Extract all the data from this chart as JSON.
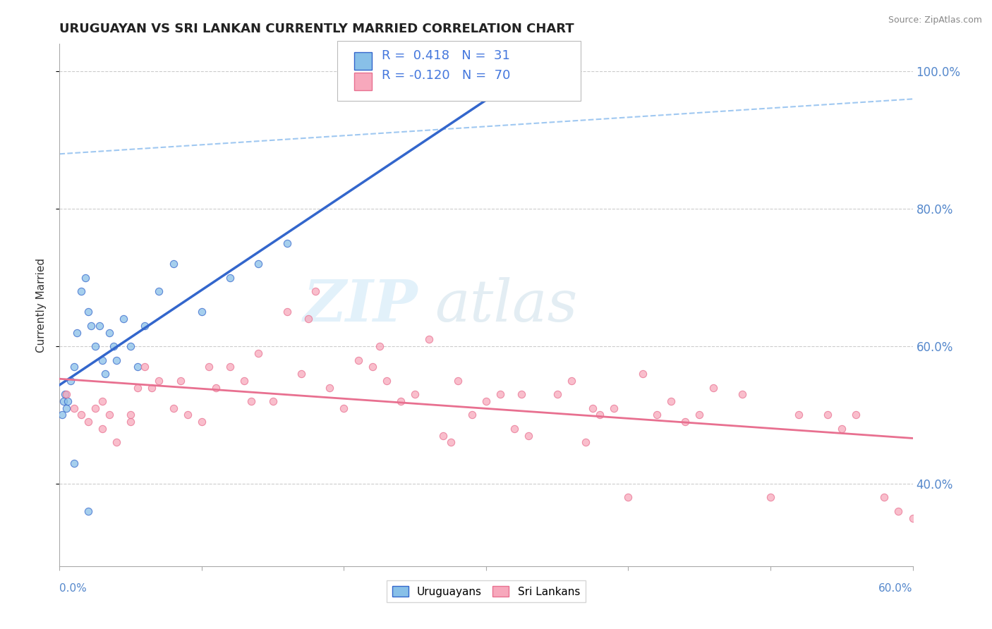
{
  "title": "URUGUAYAN VS SRI LANKAN CURRENTLY MARRIED CORRELATION CHART",
  "source_text": "Source: ZipAtlas.com",
  "ylabel": "Currently Married",
  "legend_label1": "Uruguayans",
  "legend_label2": "Sri Lankans",
  "R1": 0.418,
  "N1": 31,
  "R2": -0.12,
  "N2": 70,
  "color_uruguayan": "#88c0e8",
  "color_srilanka": "#f7a8bc",
  "color_line1": "#3366cc",
  "color_line2": "#e87090",
  "color_dashed": "#88bbee",
  "uruguayan_x": [
    0.2,
    0.3,
    0.4,
    0.5,
    0.6,
    0.8,
    1.0,
    1.2,
    1.5,
    1.8,
    2.0,
    2.2,
    2.5,
    2.8,
    3.0,
    3.2,
    3.5,
    3.8,
    4.0,
    4.5,
    5.0,
    5.5,
    6.0,
    7.0,
    8.0,
    10.0,
    12.0,
    14.0,
    16.0,
    1.0,
    2.0
  ],
  "uruguayan_y": [
    50.0,
    52.0,
    53.0,
    51.0,
    52.0,
    55.0,
    57.0,
    62.0,
    68.0,
    70.0,
    65.0,
    63.0,
    60.0,
    63.0,
    58.0,
    56.0,
    62.0,
    60.0,
    58.0,
    64.0,
    60.0,
    57.0,
    63.0,
    68.0,
    72.0,
    65.0,
    70.0,
    72.0,
    75.0,
    43.0,
    36.0
  ],
  "srilanka_x": [
    0.5,
    1.0,
    1.5,
    2.0,
    2.5,
    3.0,
    3.5,
    4.0,
    5.0,
    5.5,
    6.0,
    7.0,
    8.0,
    9.0,
    10.0,
    11.0,
    12.0,
    13.0,
    14.0,
    15.0,
    16.0,
    17.0,
    18.0,
    19.0,
    20.0,
    21.0,
    22.0,
    23.0,
    24.0,
    25.0,
    26.0,
    27.0,
    28.0,
    29.0,
    30.0,
    31.0,
    32.0,
    33.0,
    35.0,
    36.0,
    37.0,
    38.0,
    39.0,
    40.0,
    41.0,
    42.0,
    43.0,
    44.0,
    45.0,
    46.0,
    48.0,
    50.0,
    52.0,
    54.0,
    55.0,
    56.0,
    58.0,
    59.0,
    60.0,
    3.0,
    5.0,
    6.5,
    8.5,
    10.5,
    13.5,
    17.5,
    22.5,
    27.5,
    32.5,
    37.5
  ],
  "srilanka_y": [
    53.0,
    51.0,
    50.0,
    49.0,
    51.0,
    52.0,
    50.0,
    46.0,
    49.0,
    54.0,
    57.0,
    55.0,
    51.0,
    50.0,
    49.0,
    54.0,
    57.0,
    55.0,
    59.0,
    52.0,
    65.0,
    56.0,
    68.0,
    54.0,
    51.0,
    58.0,
    57.0,
    55.0,
    52.0,
    53.0,
    61.0,
    47.0,
    55.0,
    50.0,
    52.0,
    53.0,
    48.0,
    47.0,
    53.0,
    55.0,
    46.0,
    50.0,
    51.0,
    38.0,
    56.0,
    50.0,
    52.0,
    49.0,
    50.0,
    54.0,
    53.0,
    38.0,
    50.0,
    50.0,
    48.0,
    50.0,
    38.0,
    36.0,
    35.0,
    48.0,
    50.0,
    54.0,
    55.0,
    57.0,
    52.0,
    64.0,
    60.0,
    46.0,
    53.0,
    51.0
  ],
  "xlim": [
    0,
    60
  ],
  "ylim": [
    28,
    104
  ],
  "yticks": [
    40,
    60,
    80,
    100
  ],
  "background_color": "#ffffff",
  "watermark_zip": "ZIP",
  "watermark_atlas": "atlas",
  "title_fontsize": 13,
  "axis_label_fontsize": 10
}
